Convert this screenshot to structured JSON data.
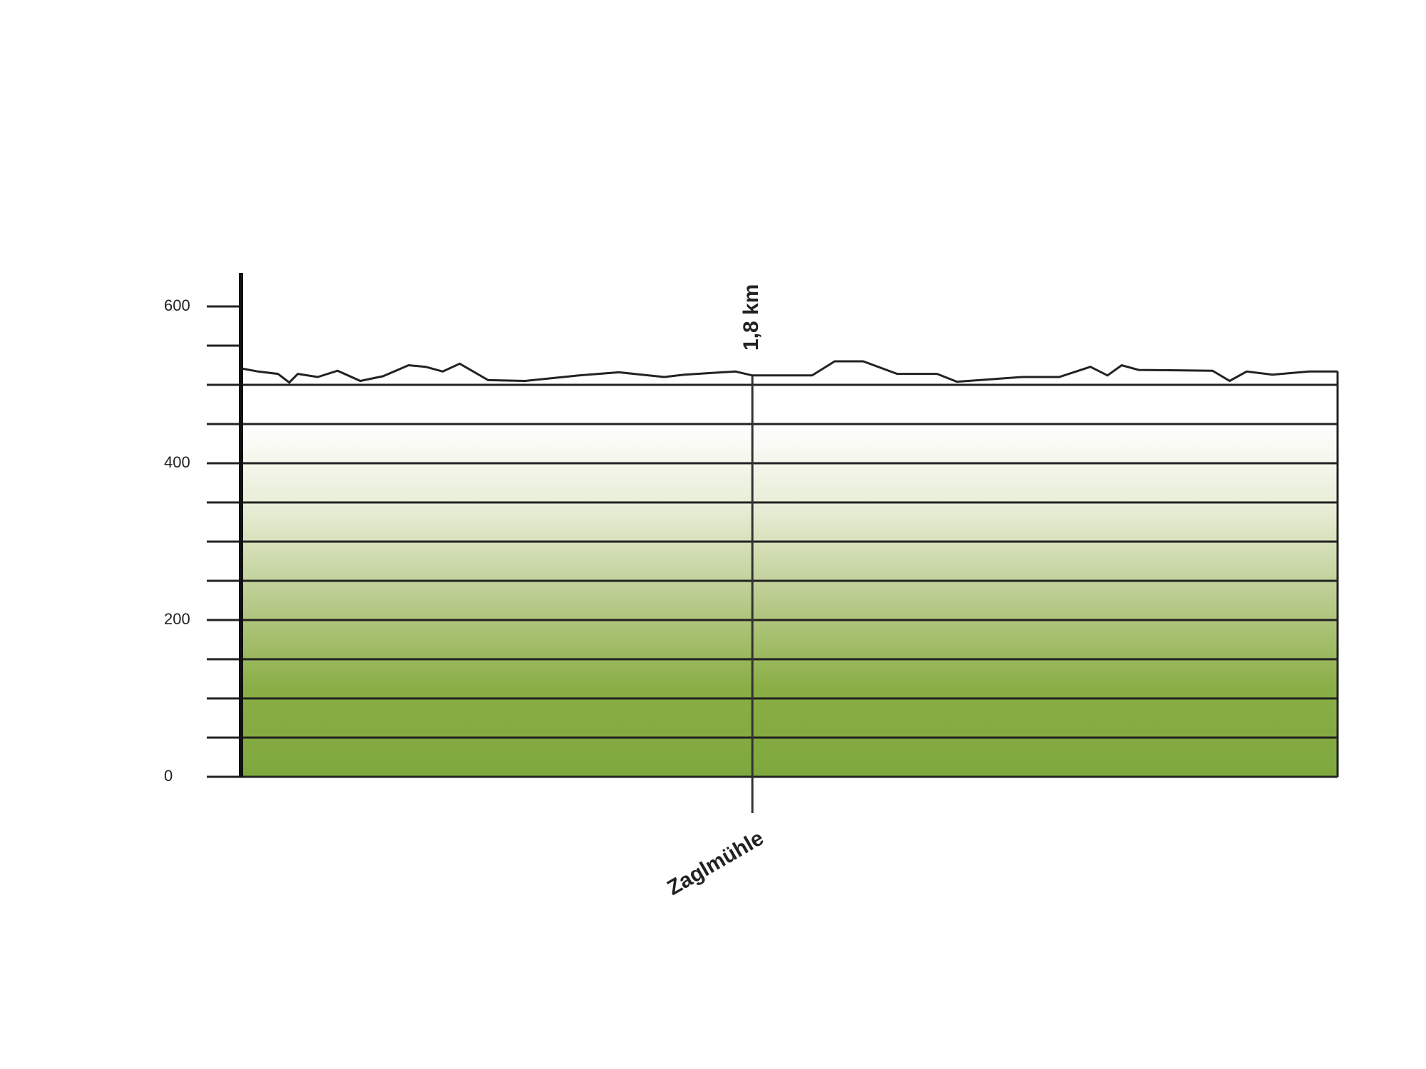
{
  "chart_data": {
    "type": "area-profile",
    "x": [
      0,
      0.06,
      0.13,
      0.17,
      0.2,
      0.27,
      0.34,
      0.42,
      0.5,
      0.59,
      0.65,
      0.71,
      0.77,
      0.87,
      1.0,
      1.19,
      1.33,
      1.49,
      1.56,
      1.74,
      1.8,
      2.01,
      2.09,
      2.19,
      2.31,
      2.45,
      2.52,
      2.75,
      2.88,
      2.99,
      3.05,
      3.1,
      3.16,
      3.42,
      3.48,
      3.54,
      3.63,
      3.76,
      3.86
    ],
    "values": [
      521,
      517,
      514,
      503,
      514,
      510,
      518,
      505,
      511,
      525,
      523,
      517,
      527,
      506,
      505,
      512,
      516,
      510,
      513,
      517,
      512,
      512,
      530,
      530,
      514,
      514,
      504,
      510,
      510,
      523,
      512,
      525,
      519,
      518,
      505,
      517,
      513,
      517,
      517
    ],
    "color": "#222222",
    "fill_colors": [
      "#7ea83e",
      "#8aae45",
      "#b9cb8c",
      "#e6ecd3",
      "#ffffff"
    ],
    "xlim": [
      0,
      3.86
    ],
    "ylim": [
      0,
      650
    ],
    "yticks": [
      0,
      200,
      400,
      600
    ],
    "minor_yticks": [
      50,
      100,
      150,
      250,
      300,
      350,
      450,
      500,
      550
    ],
    "grid": [
      50,
      100,
      150,
      200,
      250,
      300,
      350,
      400,
      450,
      500
    ],
    "markers": [
      {
        "x": {
          "value": 1.8,
          "label": "1,8 km"
        },
        "name": "Zaglmühle"
      }
    ]
  }
}
